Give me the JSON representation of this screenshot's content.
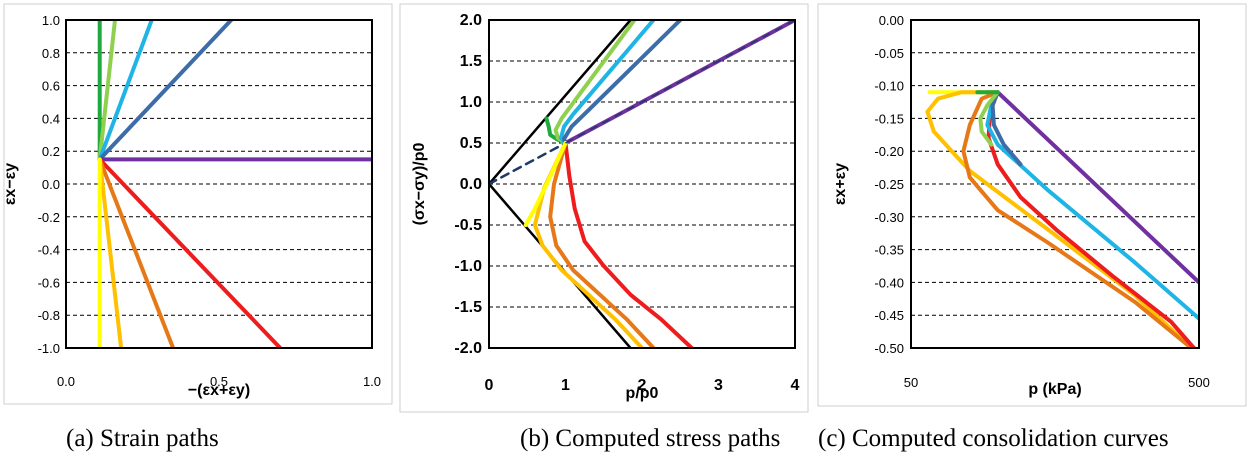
{
  "chart_data": [
    {
      "type": "line",
      "caption": "(a) Strain paths",
      "xlabel": "−(εx+εy)",
      "ylabel": "εx−εy",
      "xlim": [
        0.0,
        1.0
      ],
      "ylim": [
        -1.0,
        1.0
      ],
      "xticks": [
        "0.0",
        "0.5",
        "1.0"
      ],
      "yticks": [
        "1.0",
        "0.8",
        "0.6",
        "0.4",
        "0.2",
        "0.0",
        "-0.2",
        "-0.4",
        "-0.6",
        "-0.8",
        "-1.0"
      ],
      "grid": "horizontal dashed",
      "series": [
        {
          "color": "#1eaa3c",
          "x": [
            0.11,
            0.11
          ],
          "y": [
            0.15,
            1.0
          ]
        },
        {
          "color": "#8fd14f",
          "x": [
            0.11,
            0.16
          ],
          "y": [
            0.15,
            1.0
          ]
        },
        {
          "color": "#1fb4e6",
          "x": [
            0.11,
            0.28
          ],
          "y": [
            0.15,
            1.0
          ]
        },
        {
          "color": "#3d6da8",
          "x": [
            0.11,
            0.54
          ],
          "y": [
            0.15,
            1.0
          ]
        },
        {
          "color": "#7030a0",
          "x": [
            0.11,
            1.0
          ],
          "y": [
            0.15,
            0.15
          ]
        },
        {
          "color": "#ee1c1c",
          "x": [
            0.11,
            0.7
          ],
          "y": [
            0.15,
            -1.0
          ]
        },
        {
          "color": "#e67817",
          "x": [
            0.11,
            0.35
          ],
          "y": [
            0.15,
            -1.0
          ]
        },
        {
          "color": "#ffc000",
          "x": [
            0.11,
            0.18
          ],
          "y": [
            0.15,
            -1.0
          ]
        },
        {
          "color": "#ffff00",
          "x": [
            0.11,
            0.11
          ],
          "y": [
            0.15,
            -1.0
          ]
        }
      ]
    },
    {
      "type": "line",
      "caption": "(b) Computed stress paths",
      "xlabel": "p/p0",
      "ylabel": "(σx−σy)/p0",
      "xlim": [
        0,
        4
      ],
      "ylim": [
        -2.0,
        2.0
      ],
      "xticks": [
        "0",
        "1",
        "2",
        "3",
        "4"
      ],
      "yticks": [
        "2.0",
        "1.5",
        "1.0",
        "0.5",
        "0.0",
        "-0.5",
        "-1.0",
        "-1.5",
        "-2.0"
      ],
      "grid": "horizontal dashed",
      "reference_lines": [
        {
          "color": "#000000",
          "x": [
            0,
            1.85
          ],
          "y": [
            0,
            2.0
          ]
        },
        {
          "color": "#000000",
          "x": [
            0,
            1.85
          ],
          "y": [
            0,
            -2.0
          ]
        },
        {
          "color": "#1f3a66",
          "dashed": true,
          "x": [
            0,
            1.0
          ],
          "y": [
            0,
            0.5
          ]
        }
      ],
      "series": [
        {
          "color": "#1eaa3c",
          "x": [
            1.0,
            0.88,
            0.8,
            0.78,
            0.75
          ],
          "y": [
            0.5,
            0.55,
            0.6,
            0.7,
            0.8
          ]
        },
        {
          "color": "#8fd14f",
          "x": [
            1.0,
            0.9,
            0.87,
            0.95,
            1.9
          ],
          "y": [
            0.5,
            0.56,
            0.66,
            0.8,
            2.0
          ]
        },
        {
          "color": "#1fb4e6",
          "x": [
            1.0,
            0.94,
            0.98,
            1.1,
            2.15
          ],
          "y": [
            0.5,
            0.56,
            0.7,
            0.85,
            2.0
          ]
        },
        {
          "color": "#3d6da8",
          "x": [
            1.0,
            0.98,
            1.08,
            1.3,
            2.5
          ],
          "y": [
            0.5,
            0.55,
            0.7,
            0.9,
            2.0
          ]
        },
        {
          "color": "#7030a0",
          "x": [
            1.0,
            4.0
          ],
          "y": [
            0.5,
            2.0
          ]
        },
        {
          "color": "#ee1c1c",
          "x": [
            1.0,
            1.05,
            1.12,
            1.25,
            1.5,
            1.85,
            2.25,
            2.65
          ],
          "y": [
            0.5,
            0.1,
            -0.3,
            -0.7,
            -1.0,
            -1.35,
            -1.65,
            -2.0
          ]
        },
        {
          "color": "#e67817",
          "x": [
            1.0,
            0.85,
            0.8,
            0.88,
            1.1,
            1.45,
            1.8,
            2.15
          ],
          "y": [
            0.5,
            0.0,
            -0.4,
            -0.75,
            -1.05,
            -1.35,
            -1.65,
            -2.0
          ]
        },
        {
          "color": "#ffc000",
          "x": [
            1.0,
            0.72,
            0.6,
            0.7,
            0.95,
            1.3,
            1.65,
            2.0
          ],
          "y": [
            0.5,
            -0.05,
            -0.5,
            -0.75,
            -1.05,
            -1.35,
            -1.65,
            -2.0
          ]
        },
        {
          "color": "#ffff00",
          "x": [
            1.0,
            0.78,
            0.6,
            0.48
          ],
          "y": [
            0.5,
            0.05,
            -0.3,
            -0.5
          ]
        }
      ]
    },
    {
      "type": "line",
      "caption": "(c) Computed consolidation curves",
      "xlabel": "p (kPa)",
      "ylabel": "εx+εy",
      "xscale": "log",
      "xlim": [
        50,
        500
      ],
      "ylim": [
        -0.5,
        0.0
      ],
      "xticks": [
        "50",
        "500"
      ],
      "yticks": [
        "0.00",
        "-0.05",
        "-0.10",
        "-0.15",
        "-0.20",
        "-0.25",
        "-0.30",
        "-0.35",
        "-0.40",
        "-0.45",
        "-0.50"
      ],
      "grid": "horizontal dashed",
      "series": [
        {
          "color": "#ffff00",
          "x": [
            100,
            93,
            80,
            70,
            63,
            58
          ],
          "y": [
            -0.11,
            -0.11,
            -0.11,
            -0.11,
            -0.11,
            -0.11
          ]
        },
        {
          "color": "#ffc000",
          "x": [
            100,
            90,
            75,
            62,
            57,
            60,
            80,
            150,
            300,
            470
          ],
          "y": [
            -0.11,
            -0.11,
            -0.11,
            -0.12,
            -0.14,
            -0.17,
            -0.23,
            -0.32,
            -0.42,
            -0.5
          ]
        },
        {
          "color": "#e67817",
          "x": [
            100,
            88,
            80,
            76,
            80,
            100,
            150,
            300,
            470
          ],
          "y": [
            -0.11,
            -0.12,
            -0.16,
            -0.2,
            -0.24,
            -0.29,
            -0.34,
            -0.43,
            -0.5
          ]
        },
        {
          "color": "#ee1c1c",
          "x": [
            100,
            94,
            93,
            100,
            120,
            160,
            250,
            400,
            480
          ],
          "y": [
            -0.11,
            -0.14,
            -0.18,
            -0.22,
            -0.27,
            -0.32,
            -0.39,
            -0.46,
            -0.5
          ]
        },
        {
          "color": "#7030a0",
          "x": [
            100,
            500
          ],
          "y": [
            -0.11,
            -0.4
          ]
        },
        {
          "color": "#1fb4e6",
          "x": [
            100,
            95,
            92,
            100,
            150,
            300,
            500
          ],
          "y": [
            -0.11,
            -0.13,
            -0.16,
            -0.19,
            -0.26,
            -0.37,
            -0.455
          ]
        },
        {
          "color": "#3d6da8",
          "x": [
            100,
            96,
            97,
            105,
            120
          ],
          "y": [
            -0.11,
            -0.13,
            -0.16,
            -0.19,
            -0.22
          ]
        },
        {
          "color": "#8fd14f",
          "x": [
            100,
            92,
            87,
            88,
            95
          ],
          "y": [
            -0.11,
            -0.13,
            -0.15,
            -0.17,
            -0.19
          ]
        },
        {
          "color": "#1eaa3c",
          "x": [
            100,
            93,
            88,
            85
          ],
          "y": [
            -0.11,
            -0.11,
            -0.11,
            -0.11
          ]
        }
      ]
    }
  ]
}
